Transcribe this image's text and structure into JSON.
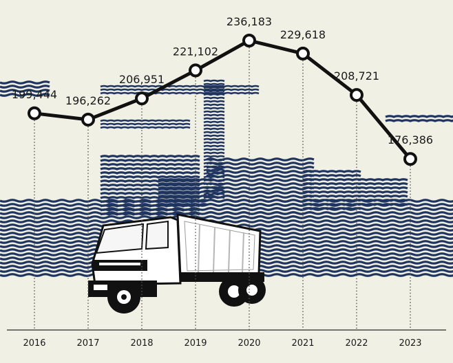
{
  "chart_data": {
    "type": "line",
    "title": "",
    "xlabel": "",
    "ylabel": "",
    "categories": [
      "2016",
      "2017",
      "2018",
      "2019",
      "2020",
      "2021",
      "2022",
      "2023"
    ],
    "values": [
      199444,
      196262,
      206951,
      221102,
      236183,
      229618,
      208721,
      176386
    ],
    "value_labels": [
      "199,444",
      "196,262",
      "206,951",
      "221,102",
      "236,183",
      "229,618",
      "208,721",
      "176,386"
    ],
    "ylim": [
      90000,
      240000
    ],
    "grid": "dotted vertical lines at each category",
    "legend": "none",
    "colors": {
      "background": "#f1f0e4",
      "line": "#111111",
      "marker_fill": "#ffffff",
      "illustration": "#1f3560",
      "baseline": "#4a4a4a"
    }
  },
  "illustration": {
    "subject": "dump-truck-icon",
    "background": "city-skyline-with-crane-icon"
  }
}
